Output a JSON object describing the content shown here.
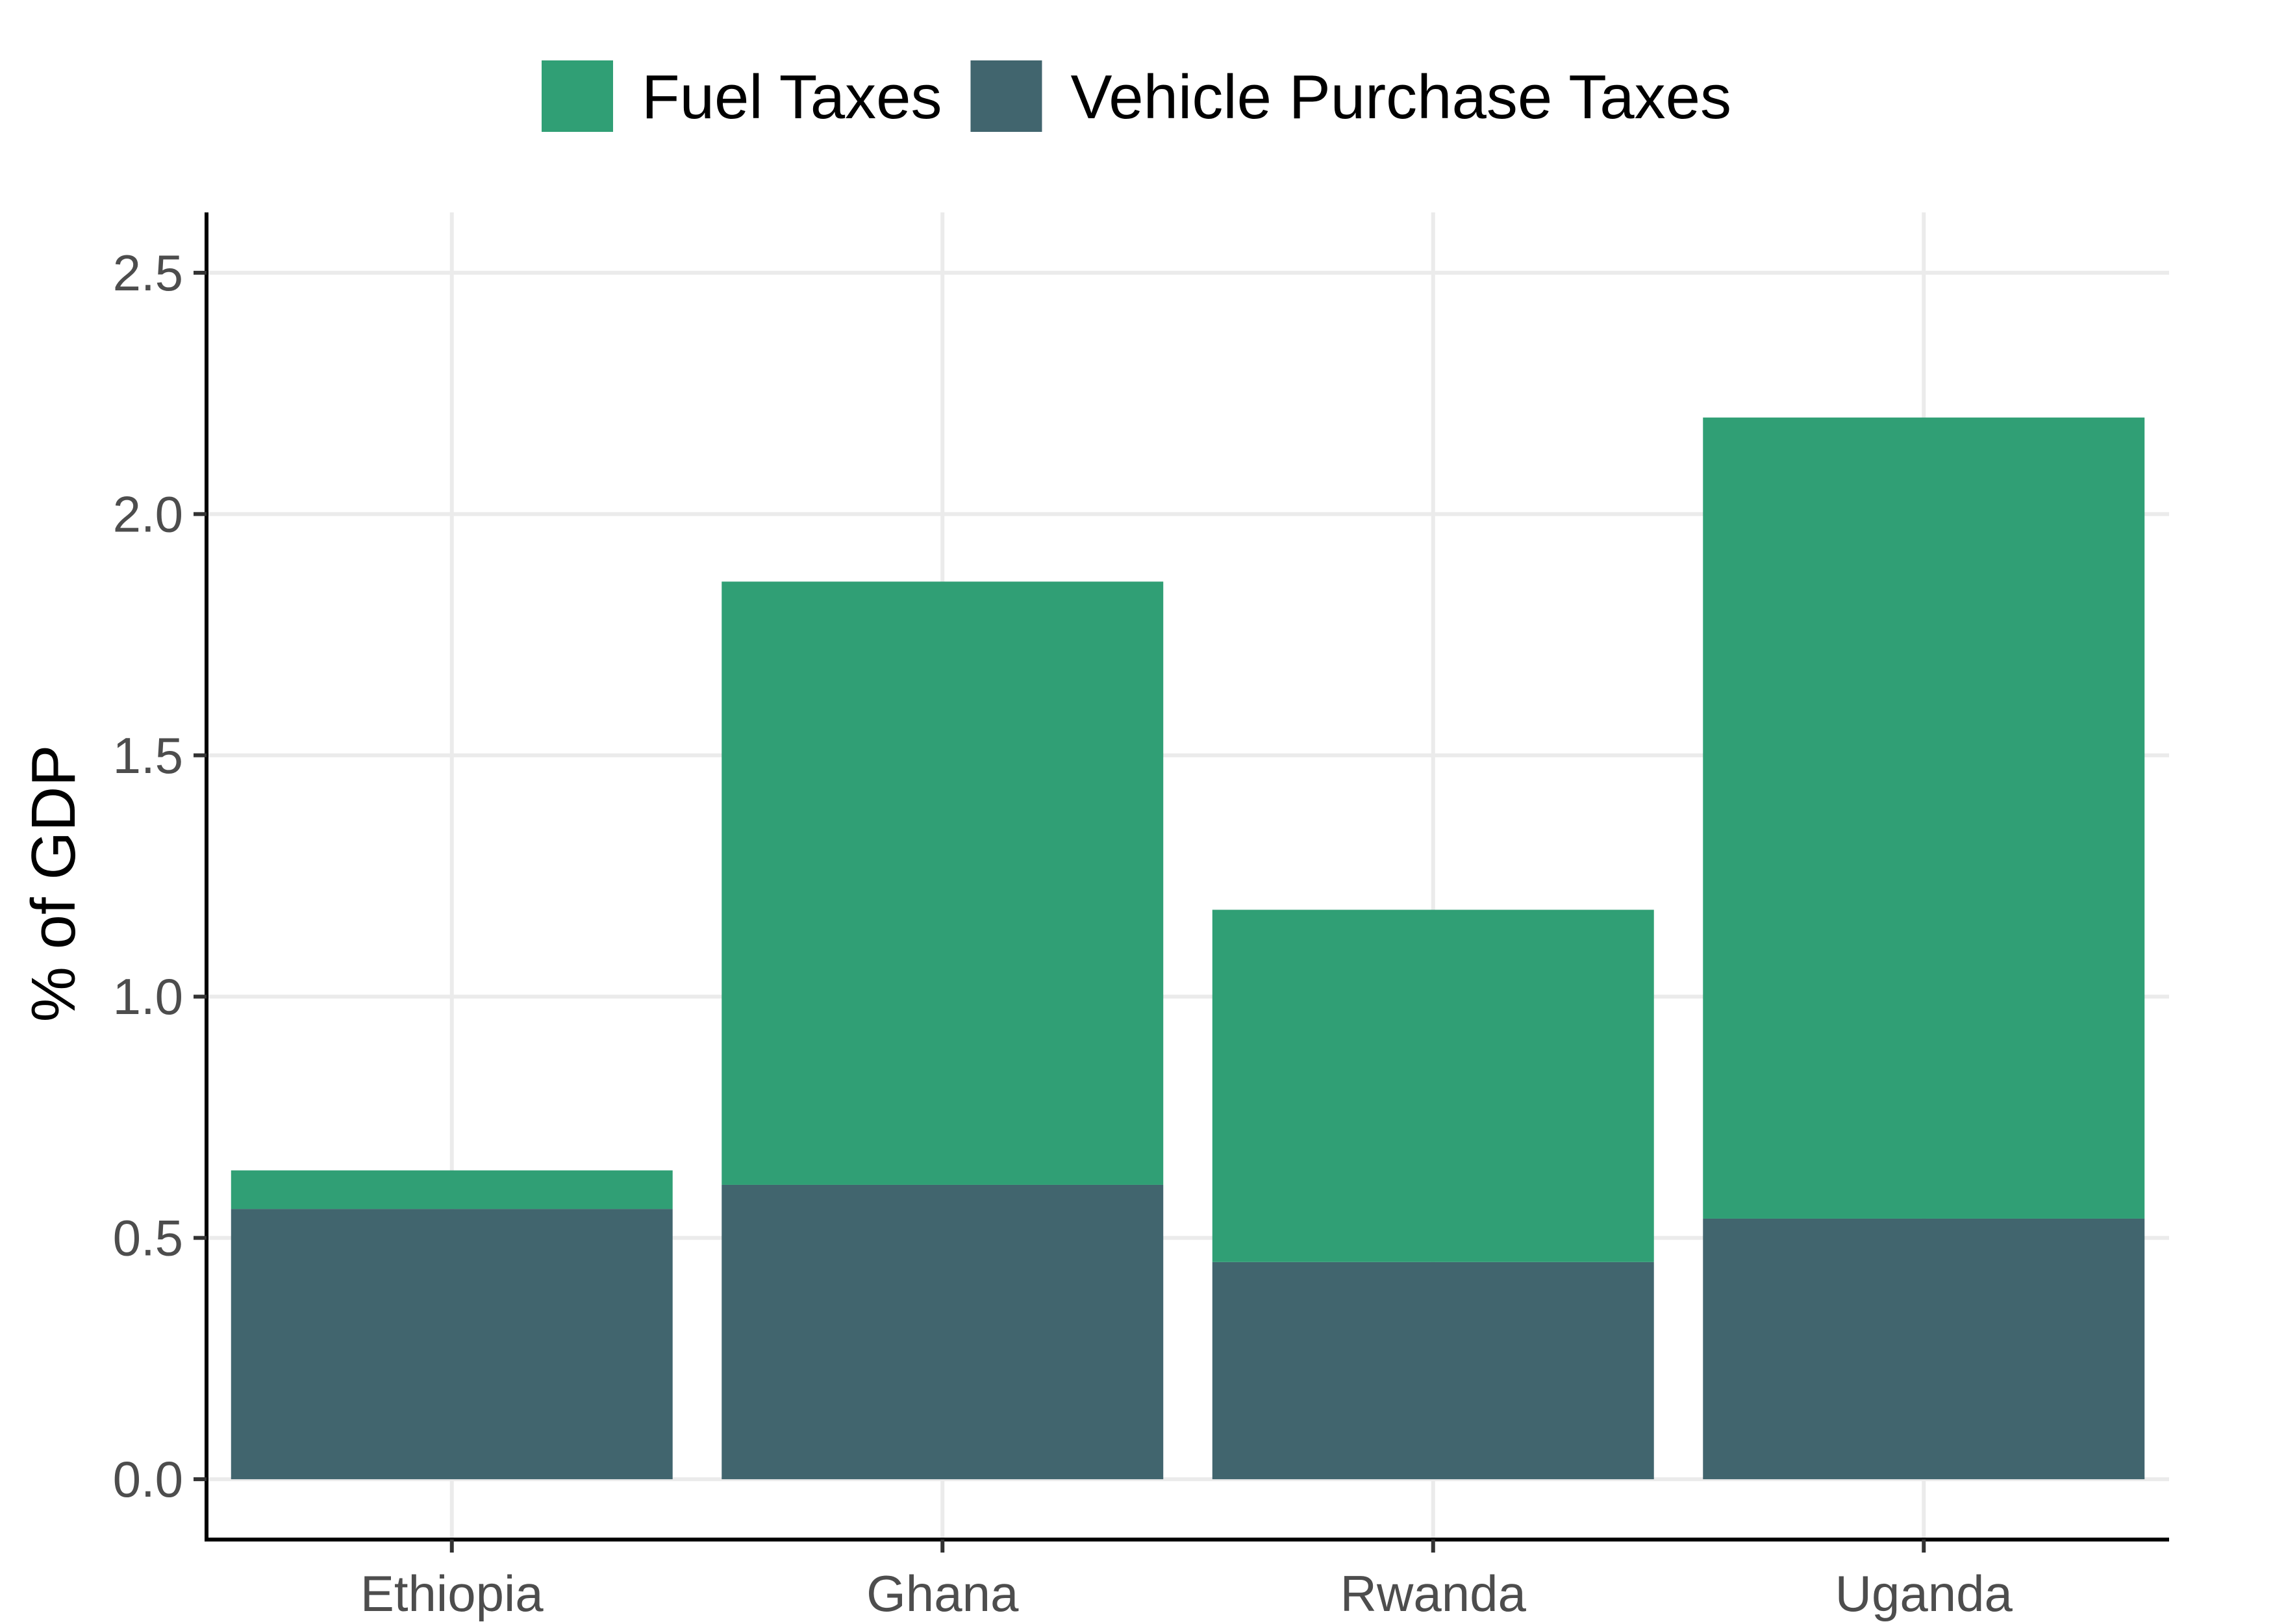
{
  "chart_data": {
    "type": "bar",
    "stacked": true,
    "categories": [
      "Ethiopia",
      "Ghana",
      "Rwanda",
      "Uganda"
    ],
    "series": [
      {
        "name": "Vehicle Purchase Taxes",
        "color": "#41656e",
        "values": [
          0.56,
          0.61,
          0.45,
          0.54
        ]
      },
      {
        "name": "Fuel Taxes",
        "color": "#309f75",
        "values": [
          0.08,
          1.25,
          0.73,
          1.66
        ]
      }
    ],
    "legend_order": [
      "Fuel Taxes",
      "Vehicle Purchase Taxes"
    ],
    "legend_position": "top",
    "title": "",
    "xlabel": "",
    "ylabel": "% of GDP",
    "ylim": [
      -0.125,
      2.625
    ],
    "yticks": [
      0.0,
      0.5,
      1.0,
      1.5,
      2.0,
      2.5
    ],
    "ytick_labels": [
      "0.0",
      "0.5",
      "1.0",
      "1.5",
      "2.0",
      "2.5"
    ],
    "grid": true
  }
}
